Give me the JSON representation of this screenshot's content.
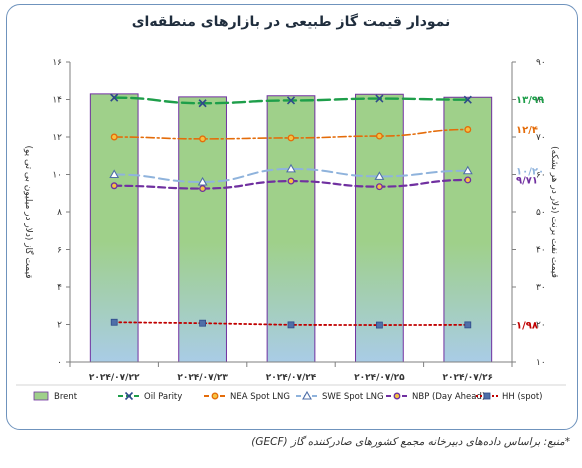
{
  "title": "نمودار قیمت گاز طبیعی در بازارهای منطقه‌ای",
  "source": "*منبع: براساس داده‌های دبیرخانه مجمع کشورهای صادرکننده گاز (GECF)",
  "colors": {
    "brent_fill": "#9fd08a",
    "brent_stroke": "#7030a0",
    "bar_bottom": "#a9cce6",
    "oil_parity": "#1e9e4a",
    "nea": "#e46c0a",
    "swe": "#8fb3dc",
    "nbp": "#7030a0",
    "hh": "#c00000"
  },
  "chart_data": {
    "type": "bar",
    "title": "نمودار قیمت گاز طبیعی در بازارهای منطقه‌ای",
    "categories": [
      "۲۰۲۴/۰۷/۲۲",
      "۲۰۲۴/۰۷/۲۳",
      "۲۰۲۴/۰۷/۲۴",
      "۲۰۲۴/۰۷/۲۵",
      "۲۰۲۴/۰۷/۲۶"
    ],
    "left_axis": {
      "label": "قیمت گاز (دلار در میلیون بی تی یو)",
      "range": [
        0,
        16
      ],
      "ticks": [
        "۰",
        "۲",
        "۴",
        "۶",
        "۸",
        "۱۰",
        "۱۲",
        "۱۴",
        "۱۶"
      ]
    },
    "right_axis": {
      "label": "قیمت نفت برنت (دلار در هر بشکه)",
      "range": [
        10,
        90
      ],
      "ticks": [
        "۱۰",
        "۲۰",
        "۳۰",
        "۴۰",
        "۵۰",
        "۶۰",
        "۷۰",
        "۸۰",
        "۹۰"
      ]
    },
    "bar_series": {
      "name": "Brent",
      "axis": "right",
      "values": [
        81.5,
        80.7,
        81.0,
        81.4,
        80.6
      ]
    },
    "line_series": [
      {
        "key": "oil_parity",
        "name": "Oil Parity",
        "marker": "x",
        "dash": "12 5",
        "width": 2.4,
        "values": [
          14.1,
          13.8,
          13.95,
          14.05,
          13.99
        ],
        "end_label": "۱۳/۹۹"
      },
      {
        "key": "nea",
        "name": "NEA Spot LNG",
        "marker": "circle",
        "dash": "8 3 2 3",
        "width": 1.6,
        "values": [
          12.0,
          11.9,
          11.95,
          12.05,
          12.4
        ],
        "end_label": "۱۲/۴"
      },
      {
        "key": "swe",
        "name": "SWE Spot LNG",
        "marker": "triangle",
        "dash": "10 5",
        "width": 2,
        "values": [
          10.0,
          9.6,
          10.3,
          9.9,
          10.2
        ],
        "end_label": "۱۰/۲۰"
      },
      {
        "key": "nbp",
        "name": "NBP (Day Ahead)",
        "marker": "circle",
        "dash": "7 4",
        "width": 2.2,
        "values": [
          9.4,
          9.25,
          9.65,
          9.35,
          9.71
        ],
        "end_label": "۹/۷۱"
      },
      {
        "key": "hh",
        "name": "HH (spot)",
        "marker": "square",
        "dash": "2 3",
        "width": 1.8,
        "values": [
          2.12,
          2.07,
          1.98,
          1.97,
          1.98
        ],
        "end_label": "۱/۹۸"
      }
    ],
    "legend_position": "bottom",
    "grid": false
  }
}
